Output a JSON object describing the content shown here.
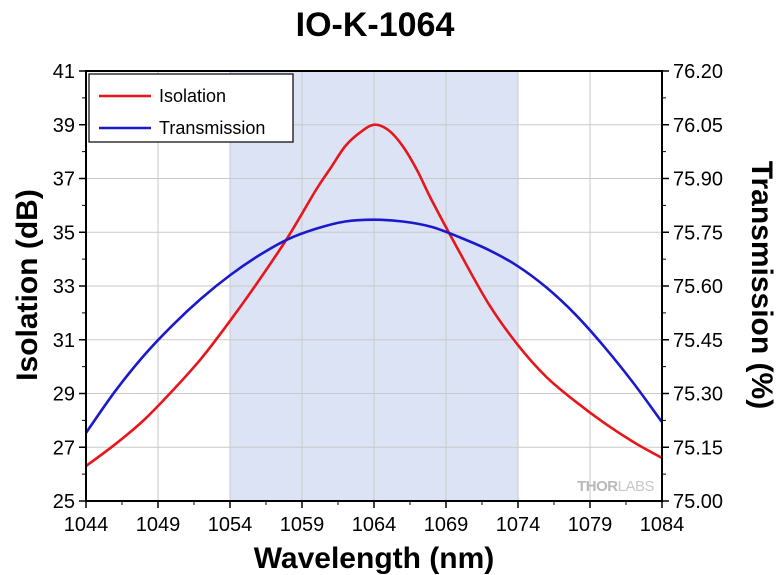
{
  "chart_data": {
    "type": "line",
    "title": "IO-K-1064",
    "xlabel": "Wavelength (nm)",
    "ylabel": "Isolation (dB)",
    "y2label": "Transmission (%)",
    "xlim": [
      1044,
      1084
    ],
    "ylim": [
      25,
      41
    ],
    "y2lim": [
      75.0,
      76.2
    ],
    "xticks": [
      "1044",
      "1049",
      "1054",
      "1059",
      "1064",
      "1069",
      "1074",
      "1079",
      "1084"
    ],
    "yticks": [
      "25",
      "27",
      "29",
      "31",
      "33",
      "35",
      "37",
      "39",
      "41"
    ],
    "y2ticks": [
      "75.00",
      "75.15",
      "75.30",
      "75.45",
      "75.60",
      "75.75",
      "75.90",
      "76.05",
      "76.20"
    ],
    "shaded_range": [
      1054,
      1074
    ],
    "shaded_color": "#dbe3f5",
    "grid": true,
    "legend_position": "top-left",
    "series": [
      {
        "name": "Isolation",
        "axis": "left",
        "color": "#e8151b",
        "x": [
          1044,
          1046,
          1048,
          1050,
          1052,
          1054,
          1056,
          1058,
          1060,
          1061,
          1062,
          1063,
          1064,
          1065,
          1066,
          1067,
          1068,
          1070,
          1072,
          1074,
          1076,
          1078,
          1080,
          1082,
          1084
        ],
        "values": [
          26.3,
          27.1,
          28.0,
          29.1,
          30.3,
          31.7,
          33.2,
          34.8,
          36.6,
          37.4,
          38.2,
          38.7,
          39.0,
          38.8,
          38.2,
          37.3,
          36.2,
          34.2,
          32.3,
          30.8,
          29.6,
          28.7,
          27.9,
          27.2,
          26.6
        ]
      },
      {
        "name": "Transmission",
        "axis": "right",
        "color": "#1a1acc",
        "x": [
          1044,
          1046,
          1048,
          1050,
          1052,
          1054,
          1056,
          1058,
          1060,
          1062,
          1064,
          1066,
          1068,
          1070,
          1072,
          1074,
          1076,
          1078,
          1080,
          1082,
          1084
        ],
        "values": [
          75.19,
          75.305,
          75.405,
          75.49,
          75.565,
          75.63,
          75.685,
          75.73,
          75.76,
          75.78,
          75.785,
          75.78,
          75.765,
          75.735,
          75.7,
          75.655,
          75.595,
          75.52,
          75.43,
          75.33,
          75.22
        ]
      }
    ],
    "watermark": {
      "bold": "THOR",
      "light": "LABS"
    }
  }
}
